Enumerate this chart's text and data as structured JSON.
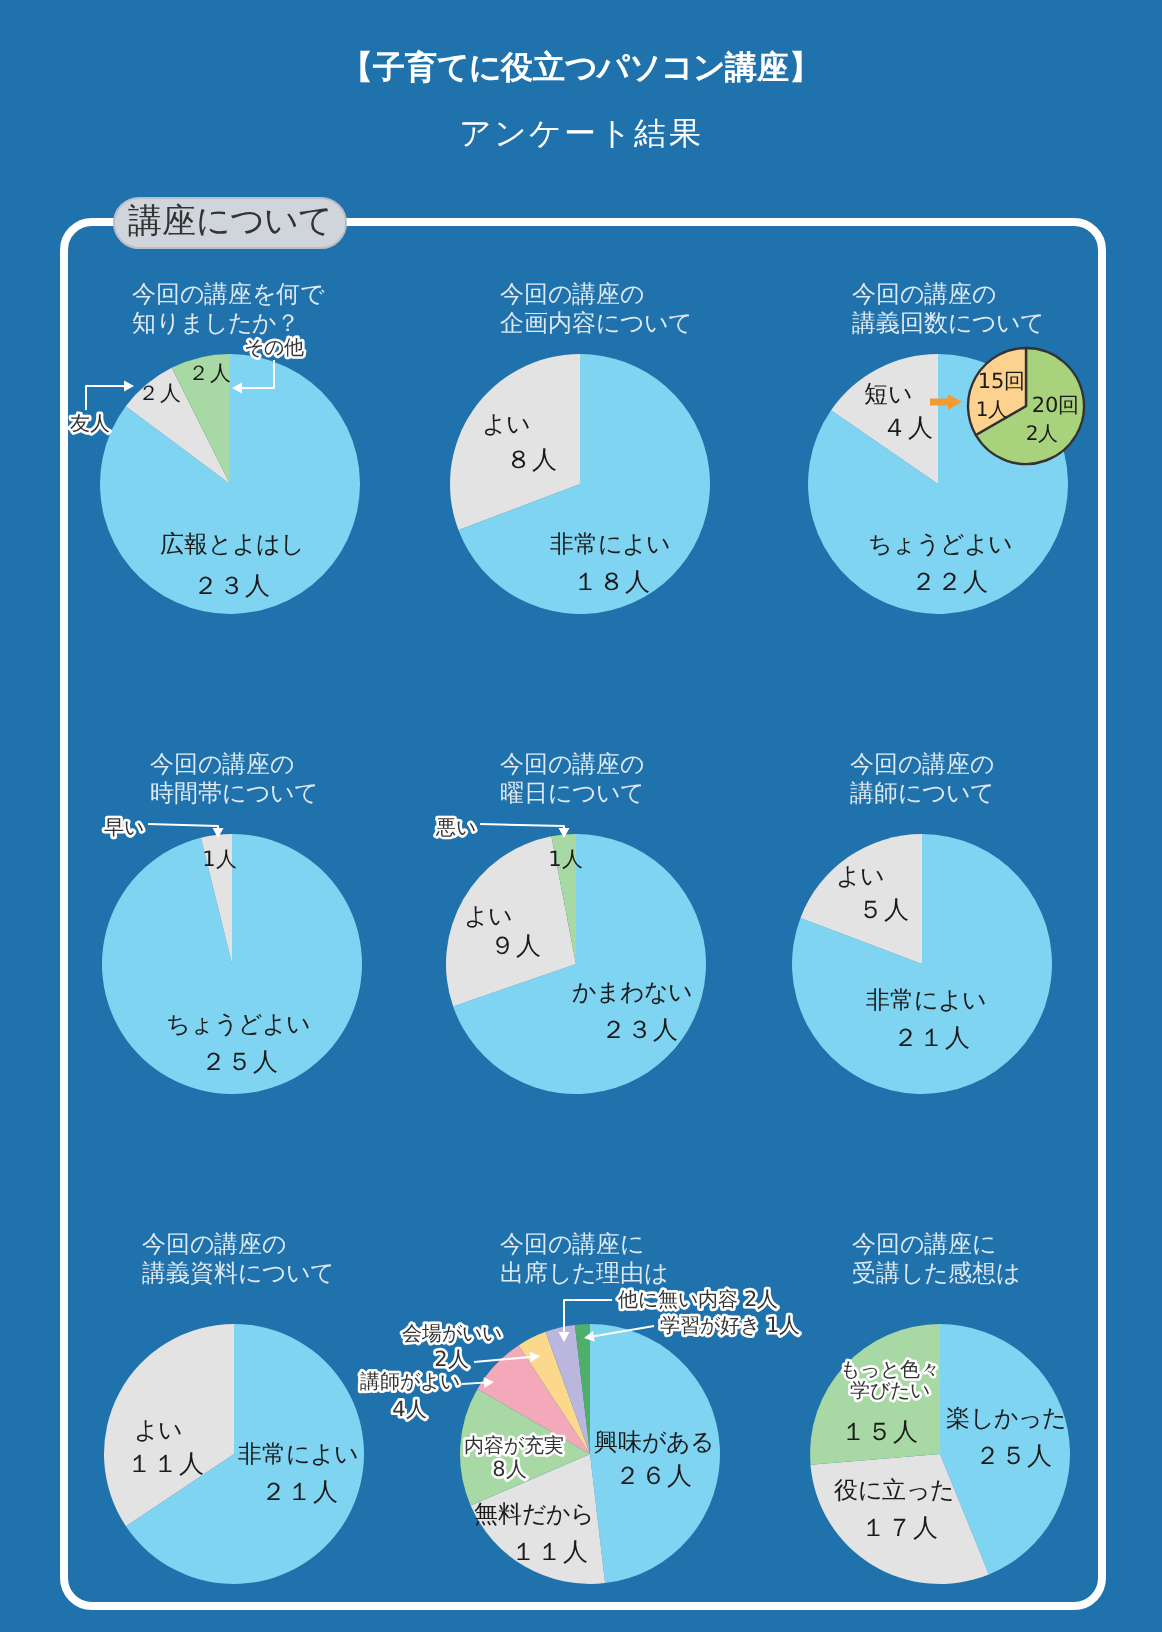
{
  "chart_data": [
    {
      "type": "other",
      "title": "【子育てに役立つパソコン講座】",
      "subtitle": "アンケート結果",
      "annotations": [
        "講座について"
      ]
    },
    {
      "type": "pie",
      "title": "今回の講座を何で知りましたか？",
      "categories": [
        "広報とよはし",
        "友人",
        "その他"
      ],
      "values": [
        23,
        2,
        2
      ],
      "value_labels": [
        "２３人",
        "２人",
        "２人"
      ],
      "colors": [
        "#7fd4f2",
        "#e3e3e3",
        "#a8d8a4"
      ]
    },
    {
      "type": "pie",
      "title": "今回の講座の企画内容について",
      "categories": [
        "非常によい",
        "よい"
      ],
      "values": [
        18,
        8
      ],
      "value_labels": [
        "１８人",
        "８人"
      ],
      "colors": [
        "#7fd4f2",
        "#e3e3e3"
      ]
    },
    {
      "type": "pie",
      "title": "今回の講座の講義回数について",
      "categories": [
        "ちょうどよい",
        "短い"
      ],
      "values": [
        22,
        4
      ],
      "value_labels": [
        "２２人",
        "４人"
      ],
      "colors": [
        "#7fd4f2",
        "#e3e3e3"
      ]
    },
    {
      "type": "pie",
      "categories": [
        "20回",
        "15回"
      ],
      "values": [
        2,
        1
      ],
      "value_labels": [
        "2人",
        "1人"
      ],
      "colors": [
        "#a9d27c",
        "#fdd28e"
      ]
    },
    {
      "type": "pie",
      "title": "今回の講座の時間帯について",
      "categories": [
        "ちょうどよい",
        "早い"
      ],
      "values": [
        25,
        1
      ],
      "value_labels": [
        "２５人",
        "1人"
      ],
      "colors": [
        "#7fd4f2",
        "#e3e3e3"
      ]
    },
    {
      "type": "pie",
      "title": "今回の講座の曜日について",
      "categories": [
        "かまわない",
        "よい",
        "悪い"
      ],
      "values": [
        23,
        9,
        1
      ],
      "value_labels": [
        "２３人",
        "９人",
        "1人"
      ],
      "colors": [
        "#7fd4f2",
        "#e3e3e3",
        "#a8d8a4"
      ]
    },
    {
      "type": "pie",
      "title": "今回の講座の講師について",
      "categories": [
        "非常によい",
        "よい"
      ],
      "values": [
        21,
        5
      ],
      "value_labels": [
        "２１人",
        "５人"
      ],
      "colors": [
        "#7fd4f2",
        "#e3e3e3"
      ]
    },
    {
      "type": "pie",
      "title": "今回の講座の講義資料について",
      "categories": [
        "非常によい",
        "よい"
      ],
      "values": [
        21,
        11
      ],
      "value_labels": [
        "２１人",
        "１１人"
      ],
      "colors": [
        "#7fd4f2",
        "#e3e3e3"
      ]
    },
    {
      "type": "pie",
      "title": "今回の講座に出席した理由は",
      "categories": [
        "興味がある",
        "無料だから",
        "内容が充実",
        "講師がよい",
        "会場がいい",
        "他に無い内容",
        "学習が好き"
      ],
      "values": [
        26,
        11,
        8,
        4,
        2,
        2,
        1
      ],
      "value_labels": [
        "２６人",
        "１１人",
        "8人",
        "4人",
        "2人",
        "2人",
        "1人"
      ],
      "colors": [
        "#7fd4f2",
        "#e3e3e3",
        "#a8d8a4",
        "#f4a9bb",
        "#fcd88c",
        "#bab6dd",
        "#4fae6a"
      ]
    },
    {
      "type": "pie",
      "title": "今回の講座に受講した感想は",
      "categories": [
        "楽しかった",
        "役に立った",
        "もっと色々学びたい"
      ],
      "values": [
        25,
        17,
        15
      ],
      "value_labels": [
        "２５人",
        "１７人",
        "１５人"
      ],
      "colors": [
        "#7fd4f2",
        "#e3e3e3",
        "#a8d8a4"
      ]
    }
  ]
}
